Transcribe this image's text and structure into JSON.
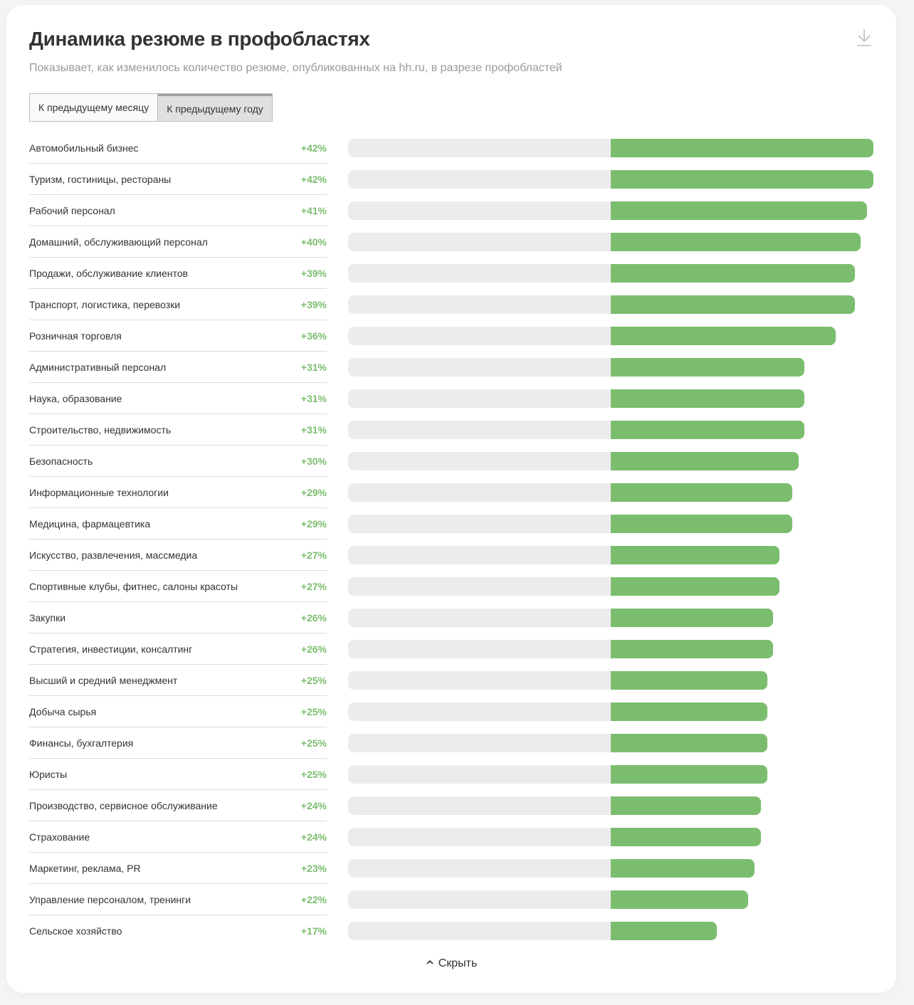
{
  "header": {
    "title": "Динамика резюме в профобластях",
    "subtitle": "Показывает, как изменилось количество резюме, опубликованных на hh.ru, в разрезе профобластей",
    "download_icon": "download-icon"
  },
  "tabs": [
    {
      "label": "К предыдущему месяцу",
      "active": false
    },
    {
      "label": "К предыдущему году",
      "active": true
    }
  ],
  "colors": {
    "positive": "#7bbd6e",
    "track": "#ececee"
  },
  "footer": {
    "hide_label": "Скрыть",
    "hide_icon": "chevron-up-icon"
  },
  "chart_data": {
    "type": "bar",
    "orientation": "horizontal",
    "title": "Динамика резюме в профобластях",
    "unit": "%",
    "xlim": [
      -42,
      42
    ],
    "categories": [
      "Автомобильный бизнес",
      "Туризм, гостиницы, рестораны",
      "Рабочий персонал",
      "Домашний, обслуживающий персонал",
      "Продажи, обслуживание клиентов",
      "Транспорт, логистика, перевозки",
      "Розничная торговля",
      "Административный персонал",
      "Наука, образование",
      "Строительство, недвижимость",
      "Безопасность",
      "Информационные технологии",
      "Медицина, фармацевтика",
      "Искусство, развлечения, массмедиа",
      "Спортивные клубы, фитнес, салоны красоты",
      "Закупки",
      "Стратегия, инвестиции, консалтинг",
      "Высший и средний менеджмент",
      "Добыча сырья",
      "Финансы, бухгалтерия",
      "Юристы",
      "Производство, сервисное обслуживание",
      "Страхование",
      "Маркетинг, реклама, PR",
      "Управление персоналом, тренинги",
      "Сельское хозяйство"
    ],
    "values": [
      42,
      42,
      41,
      40,
      39,
      39,
      36,
      31,
      31,
      31,
      30,
      29,
      29,
      27,
      27,
      26,
      26,
      25,
      25,
      25,
      25,
      24,
      24,
      23,
      22,
      17
    ],
    "value_labels": [
      "+42%",
      "+42%",
      "+41%",
      "+40%",
      "+39%",
      "+39%",
      "+36%",
      "+31%",
      "+31%",
      "+31%",
      "+30%",
      "+29%",
      "+29%",
      "+27%",
      "+27%",
      "+26%",
      "+26%",
      "+25%",
      "+25%",
      "+25%",
      "+25%",
      "+24%",
      "+24%",
      "+23%",
      "+22%",
      "+17%"
    ]
  }
}
